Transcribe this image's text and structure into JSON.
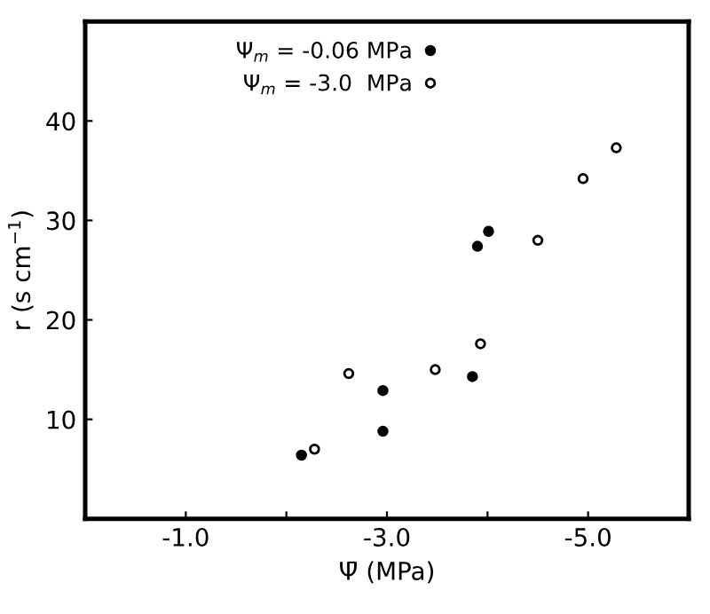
{
  "chart_data": {
    "type": "scatter",
    "xlabel": "Ψ̄ (MPa)",
    "ylabel": "r (s cm$^{−1}$)",
    "xlim": [
      0,
      -6
    ],
    "xticks": [
      {
        "value": -1,
        "label": "-1.0"
      },
      {
        "value": -2,
        "label": null
      },
      {
        "value": -3,
        "label": "-3.0"
      },
      {
        "value": -4,
        "label": null
      },
      {
        "value": -5,
        "label": "-5.0"
      }
    ],
    "ylim": [
      0,
      50
    ],
    "yticks": [
      10,
      20,
      30,
      40
    ],
    "grid": false,
    "legend": "top",
    "marker": "circle",
    "series": [
      {
        "name": "Ψ$_{m}$ = -0.06 MPa",
        "color": "#000000",
        "x": [
          -2.15,
          -2.96,
          -2.96,
          -3.85,
          -3.9,
          -4.01
        ],
        "values": [
          6.4,
          12.9,
          8.8,
          14.3,
          27.4,
          28.9
        ]
      },
      {
        "name": "Ψ$_{m}$ = -3.0  MPa",
        "color": "#000000",
        "x": [
          -2.28,
          -2.62,
          -3.48,
          -3.93,
          -4.5,
          -4.95,
          -5.28
        ],
        "values": [
          7.0,
          14.6,
          15.0,
          17.6,
          28.0,
          34.2,
          37.3
        ]
      }
    ]
  }
}
